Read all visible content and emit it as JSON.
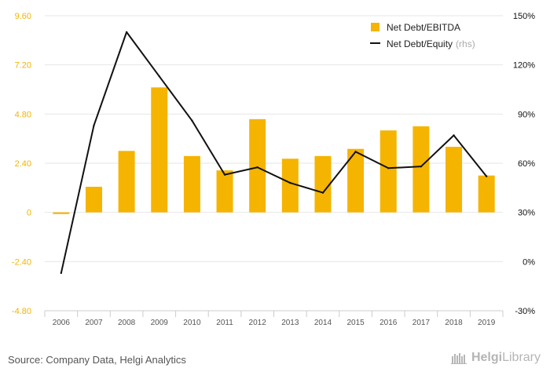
{
  "chart_data": {
    "type": "bar",
    "categories": [
      "2006",
      "2007",
      "2008",
      "2009",
      "2010",
      "2011",
      "2012",
      "2013",
      "2014",
      "2015",
      "2016",
      "2017",
      "2018",
      "2019"
    ],
    "series": [
      {
        "name": "Net Debt/EBITDA",
        "type": "bar",
        "axis": "left",
        "color": "#f5b400",
        "values": [
          -0.08,
          1.25,
          3.0,
          6.1,
          2.75,
          2.05,
          4.55,
          2.62,
          2.75,
          3.1,
          4.0,
          4.2,
          3.2,
          1.8
        ]
      },
      {
        "name": "Net Debt/Equity",
        "type": "line",
        "axis": "right",
        "color": "#111111",
        "values": [
          -7,
          83,
          140,
          113,
          86,
          53,
          57.5,
          48,
          42,
          67,
          57,
          58,
          77,
          52
        ]
      }
    ],
    "y_left": {
      "min": -4.8,
      "max": 9.6,
      "ticks": [
        "-4.80",
        "-2.40",
        "0",
        "2.40",
        "4.80",
        "7.20",
        "9.60"
      ],
      "tick_values": [
        -4.8,
        -2.4,
        0,
        2.4,
        4.8,
        7.2,
        9.6
      ]
    },
    "y_right": {
      "min": -30,
      "max": 150,
      "ticks": [
        "-30%",
        "0%",
        "30%",
        "60%",
        "90%",
        "120%",
        "150%"
      ],
      "tick_values": [
        -30,
        0,
        30,
        60,
        90,
        120,
        150
      ]
    },
    "legend": {
      "position": "top-right",
      "items": [
        {
          "label": "Net Debt/EBITDA",
          "suffix": ""
        },
        {
          "label": "Net Debt/Equity",
          "suffix": "(rhs)"
        }
      ]
    },
    "grid": true
  },
  "footer": {
    "source": "Source: Company Data, Helgi Analytics",
    "logo_a": "Helgi",
    "logo_b": "Library"
  },
  "colors": {
    "bar": "#f5b400",
    "line": "#111111",
    "axis_label_left": "#f5b400",
    "axis_label_right": "#111111",
    "grid": "#e6e6e6"
  }
}
